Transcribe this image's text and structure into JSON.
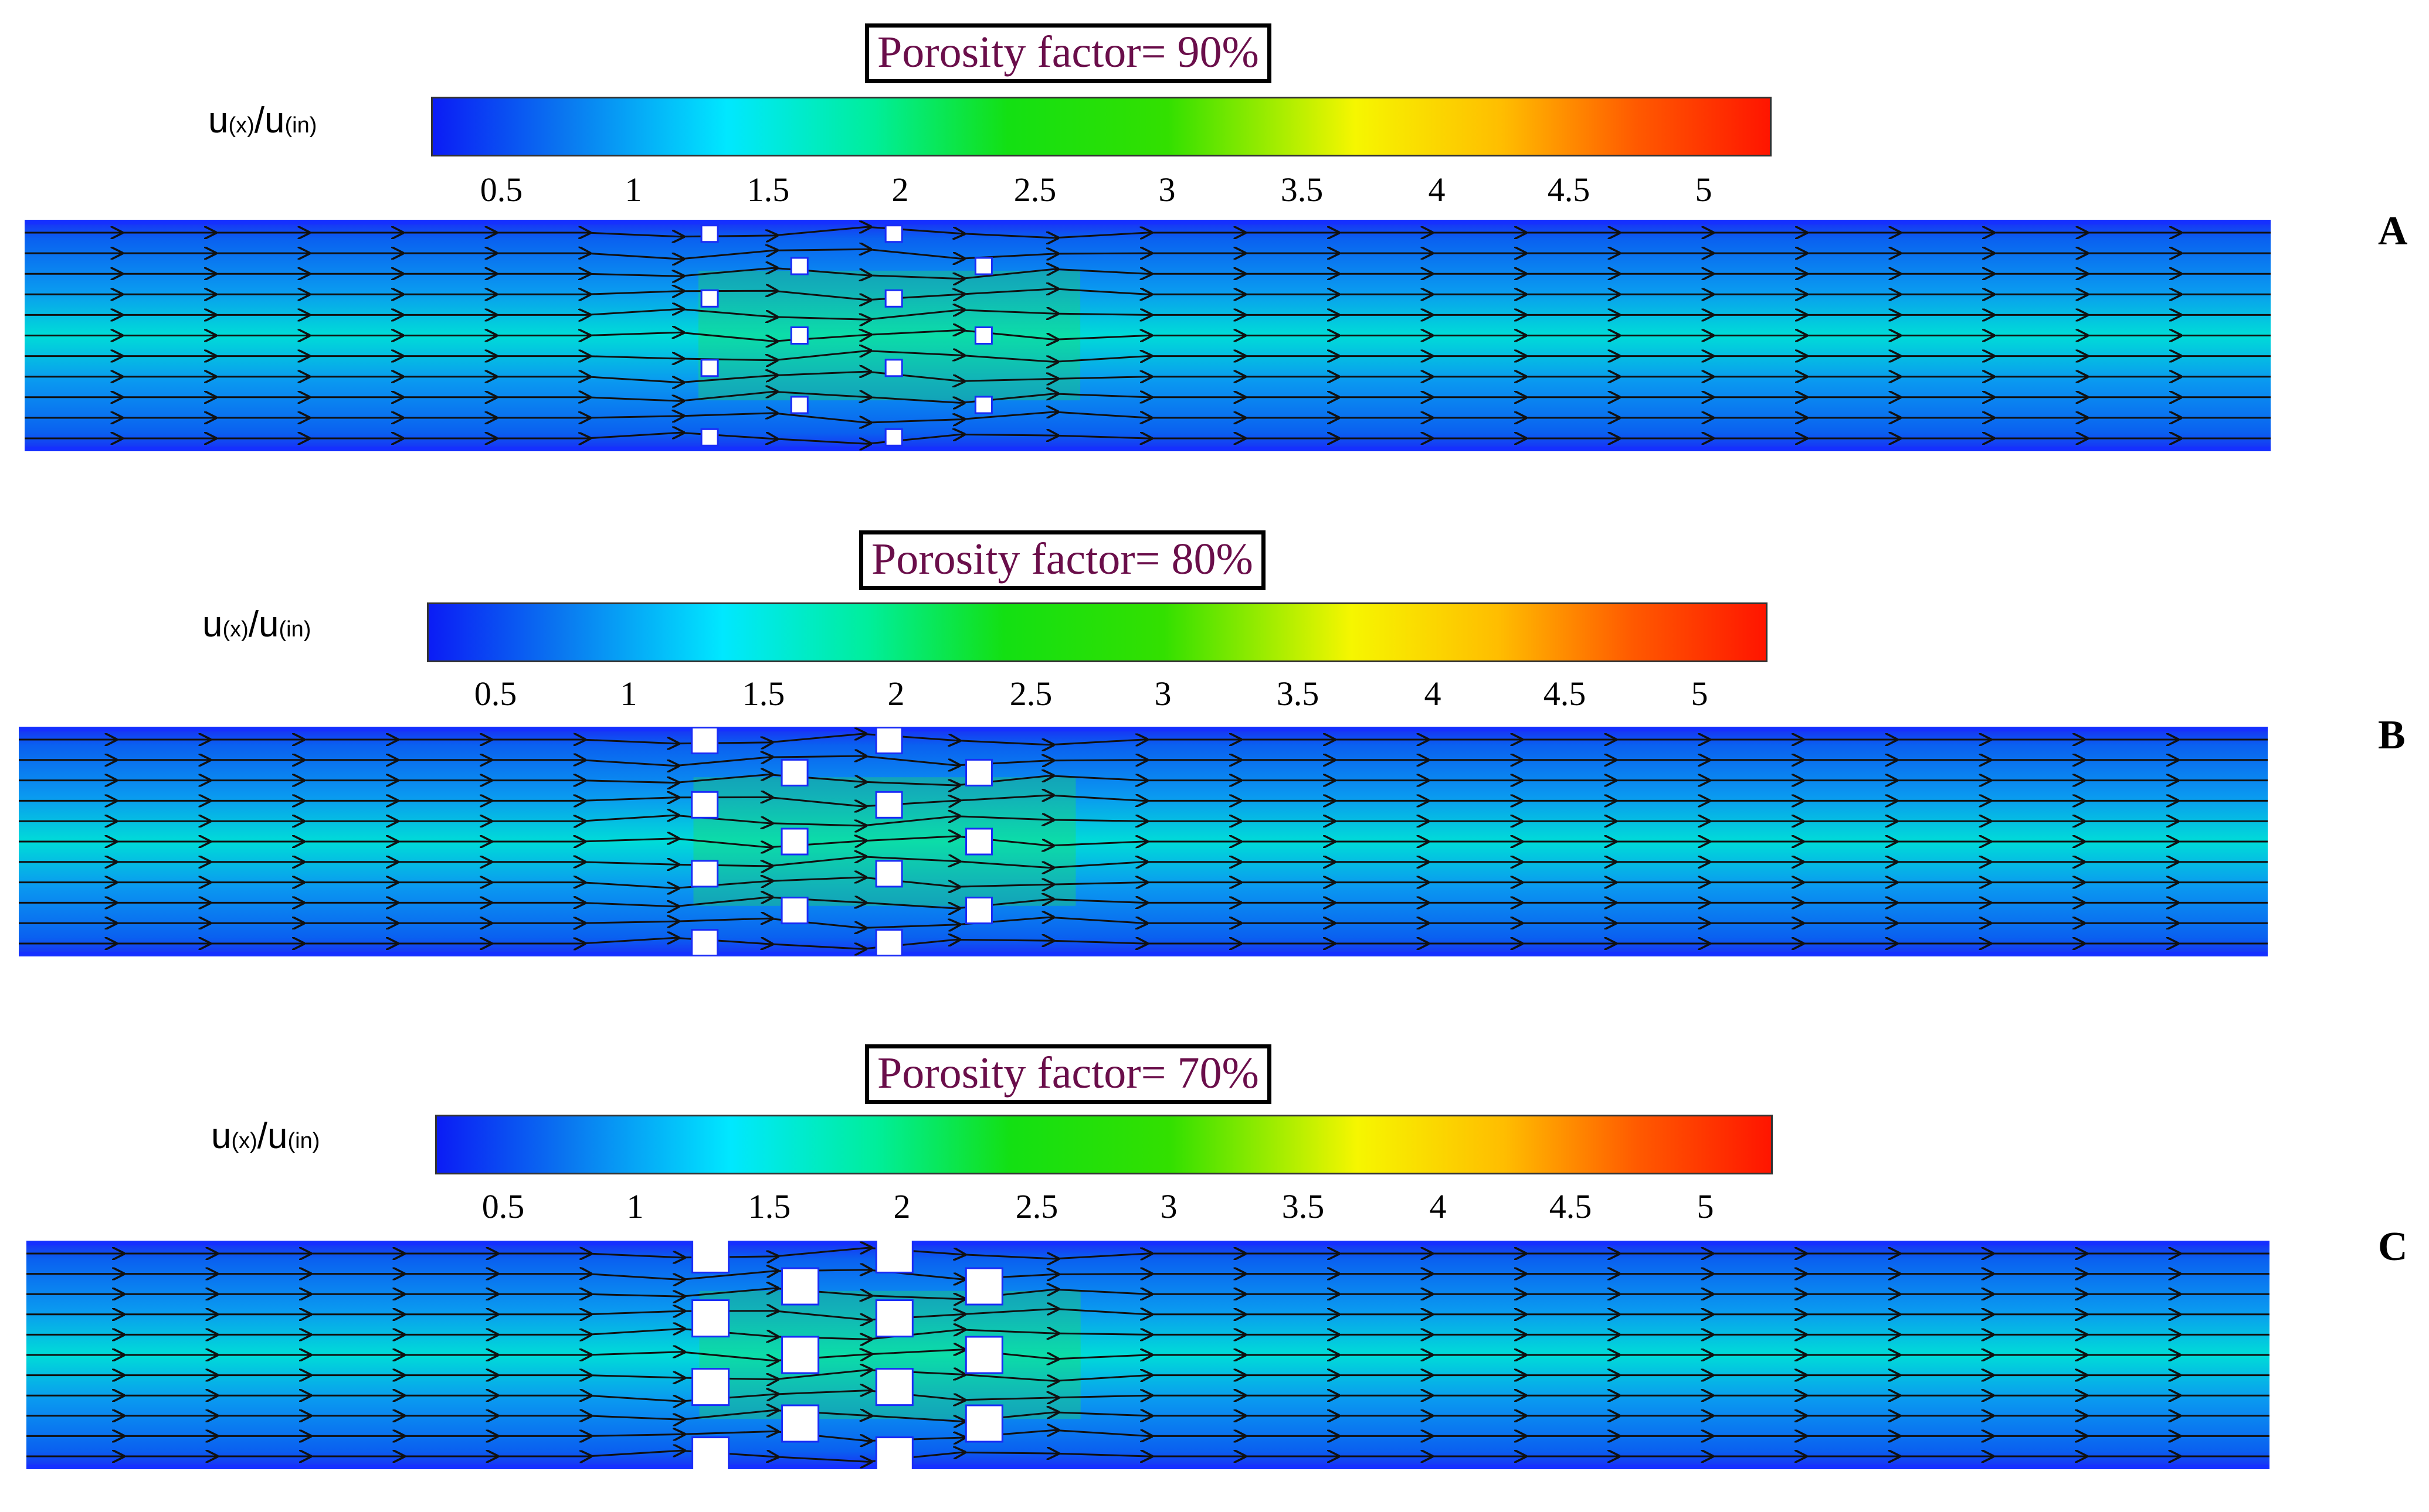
{
  "colorbar": {
    "label_main": "u",
    "label_sub1": "(x)",
    "label_mid": "/u",
    "label_sub2": "(in)",
    "ticks": [
      "0.5",
      "1",
      "1.5",
      "2",
      "2.5",
      "3",
      "3.5",
      "4",
      "4.5",
      "5"
    ],
    "colors": [
      "#0b1cf5",
      "#0a78f0",
      "#00e8ff",
      "#00ee9a",
      "#13e013",
      "#33e000",
      "#f6f600",
      "#ffbd00",
      "#ff5a00",
      "#ff1500"
    ]
  },
  "panels": [
    {
      "letter": "A",
      "title": "Porosity factor= 90%",
      "porosity_percent": 90
    },
    {
      "letter": "B",
      "title": "Porosity factor= 80%",
      "porosity_percent": 80
    },
    {
      "letter": "C",
      "title": "Porosity factor= 70%",
      "porosity_percent": 70
    }
  ],
  "colors": {
    "title_text": "#6a0e4a",
    "channel_wall": "#1530ff",
    "channel_fill": "#0a8ff0",
    "streamline": "#111111",
    "obstacle": "#ffffff"
  }
}
